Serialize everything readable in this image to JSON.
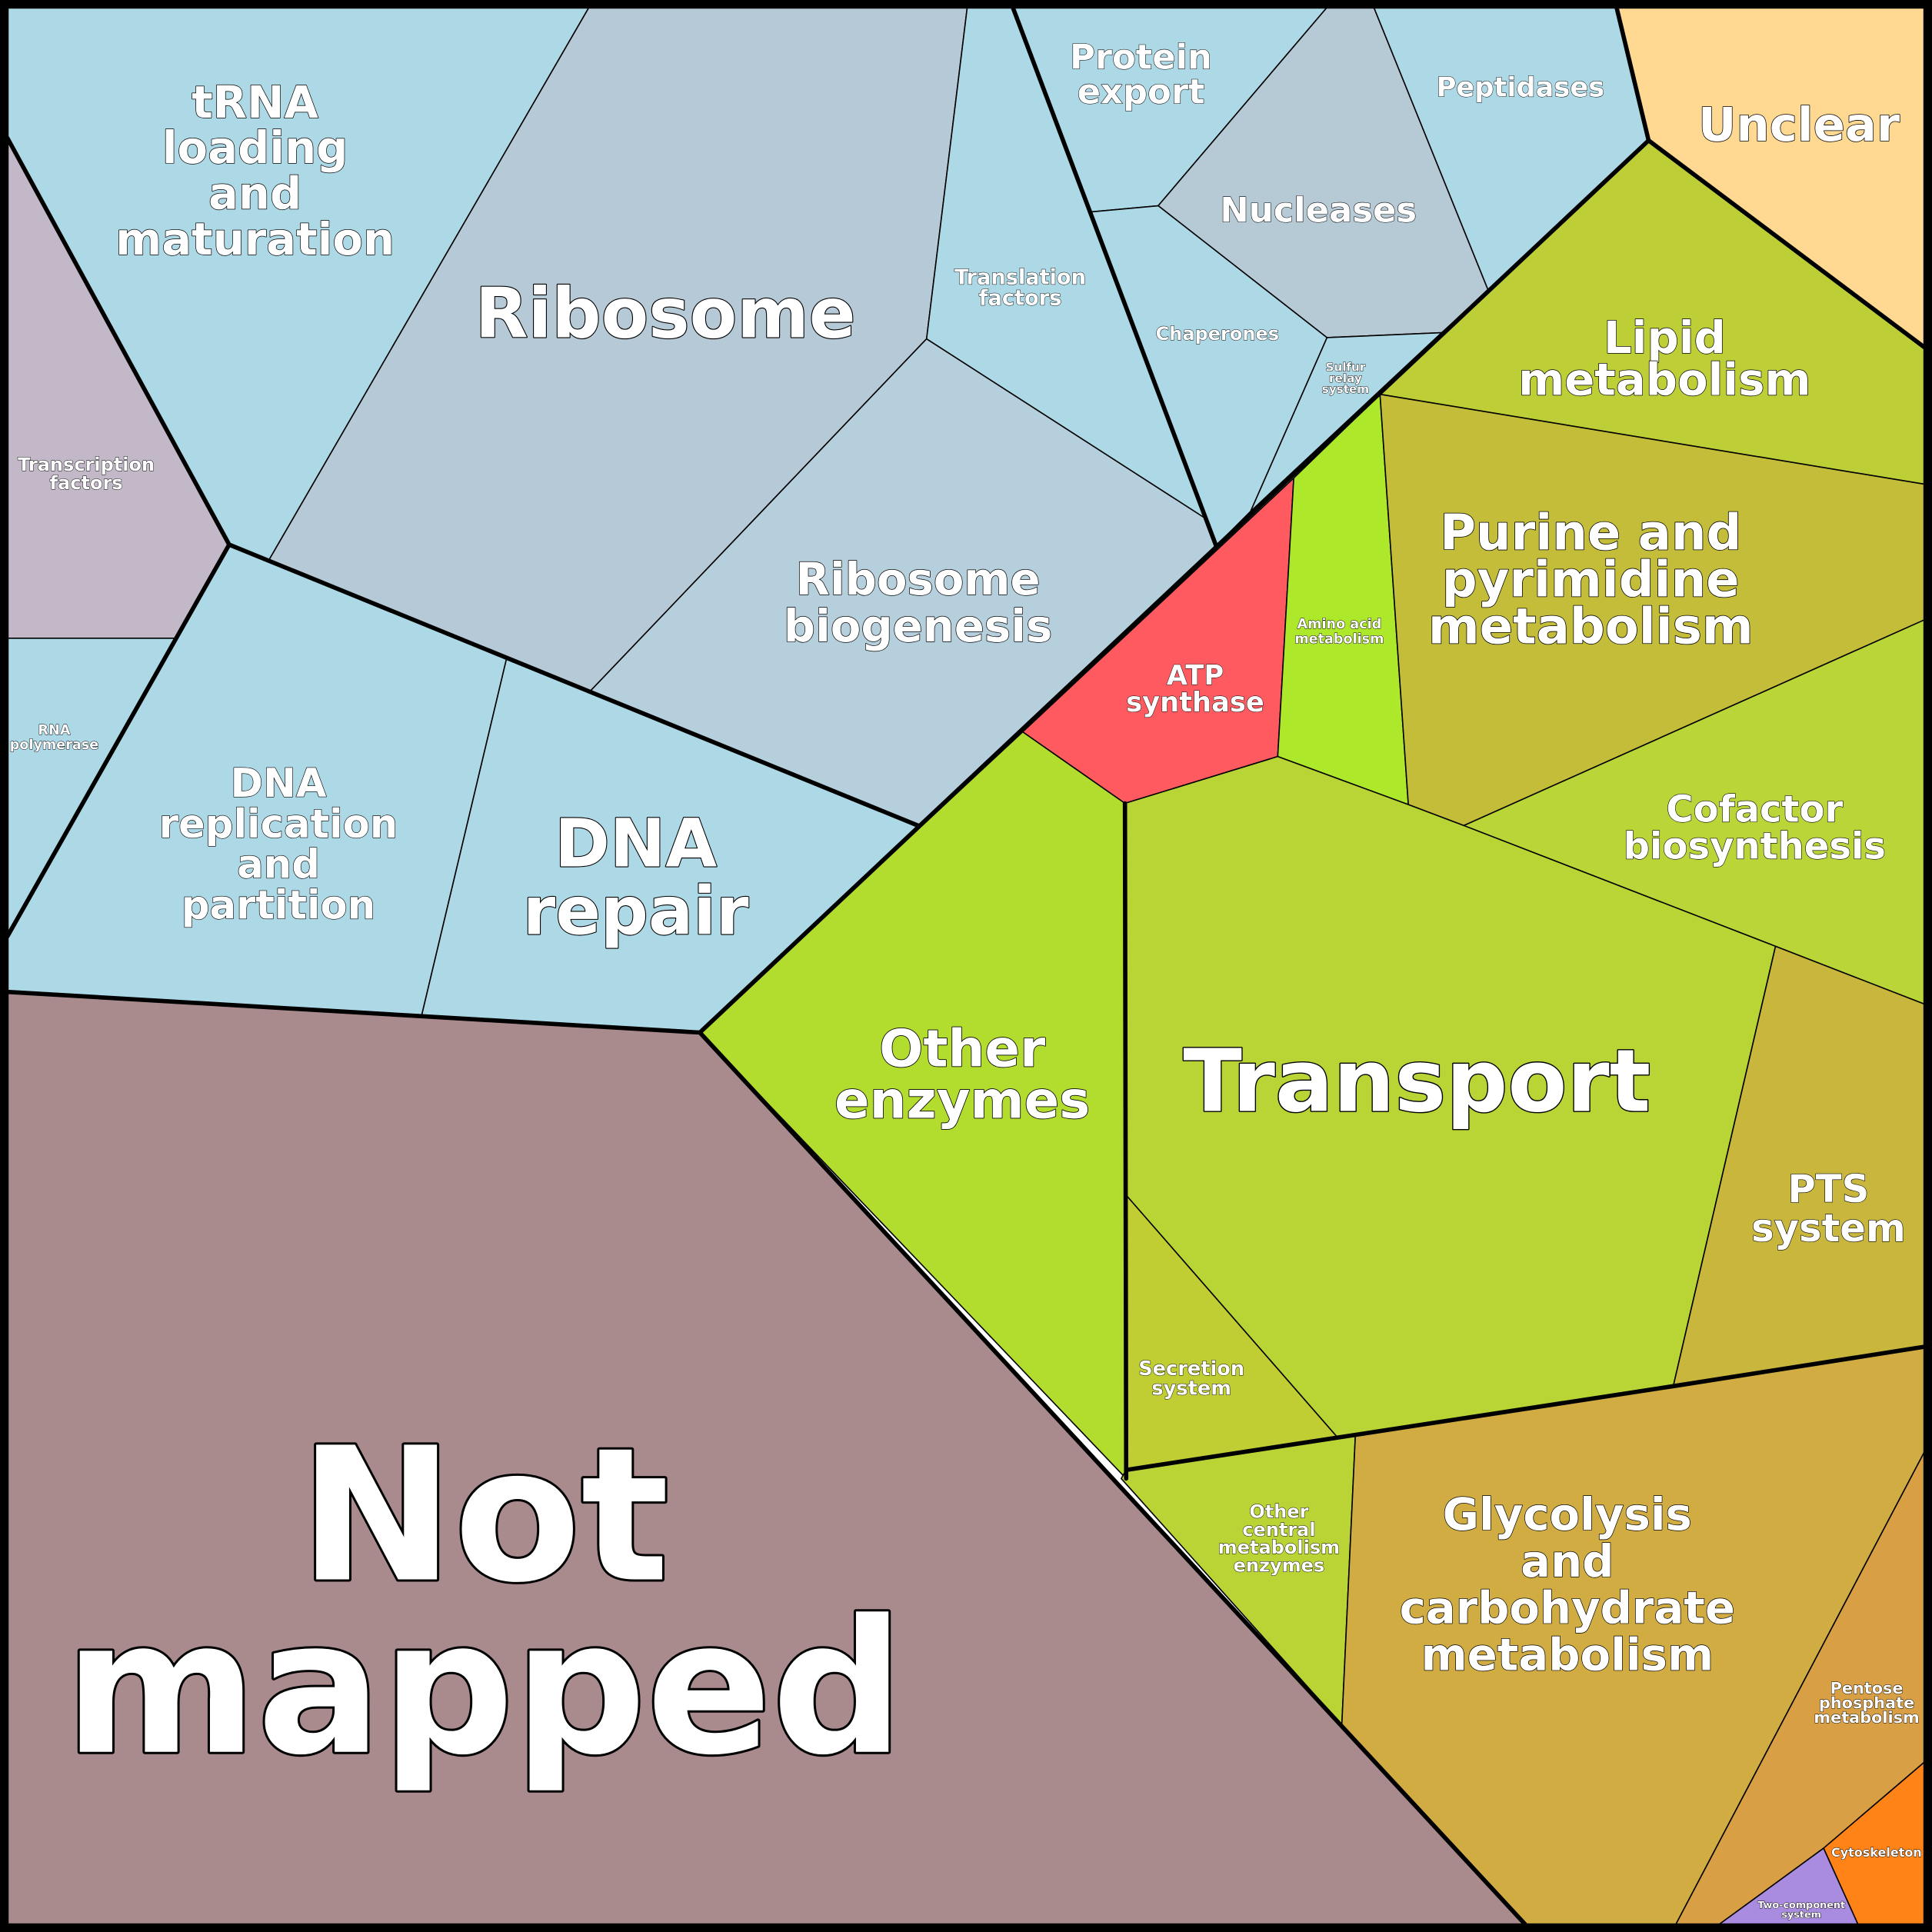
{
  "cells": [
    {
      "label": [
        "tRNA",
        "loading",
        "and",
        "maturation"
      ]
    },
    {
      "label": [
        "Ribosome"
      ]
    },
    {
      "label": [
        "Transcription",
        "factors"
      ]
    },
    {
      "label": [
        "RNA",
        "polymerase"
      ]
    },
    {
      "label": [
        "DNA",
        "replication",
        "and",
        "partition"
      ]
    },
    {
      "label": [
        "DNA",
        "repair"
      ]
    },
    {
      "label": [
        "Ribosome",
        "biogenesis"
      ]
    },
    {
      "label": [
        "Translation",
        "factors"
      ]
    },
    {
      "label": [
        "Protein",
        "export"
      ]
    },
    {
      "label": [
        "Nucleases"
      ]
    },
    {
      "label": [
        "Peptidases"
      ]
    },
    {
      "label": [
        "Chaperones"
      ]
    },
    {
      "label": [
        "Sulfur",
        "relay",
        "system"
      ]
    },
    {
      "label": [
        "Unclear"
      ]
    },
    {
      "label": [
        "Lipid",
        "metabolism"
      ]
    },
    {
      "label": [
        "ATP",
        "synthase"
      ]
    },
    {
      "label": [
        "Amino acid",
        "metabolism"
      ]
    },
    {
      "label": [
        "Purine and",
        "pyrimidine",
        "metabolism"
      ]
    },
    {
      "label": [
        "Cofactor",
        "biosynthesis"
      ]
    },
    {
      "label": [
        "Other",
        "enzymes"
      ]
    },
    {
      "label": [
        "Transport"
      ]
    },
    {
      "label": [
        "PTS",
        "system"
      ]
    },
    {
      "label": [
        "Secretion",
        "system"
      ]
    },
    {
      "label": [
        "Other",
        "central",
        "metabolism",
        "enzymes"
      ]
    },
    {
      "label": [
        "Glycolysis",
        "and",
        "carbohydrate",
        "metabolism"
      ]
    },
    {
      "label": [
        "Pentose",
        "phosphate",
        "metabolism"
      ]
    },
    {
      "label": [
        "Cytoskeleton"
      ]
    },
    {
      "label": [
        "Two-component",
        "system"
      ]
    },
    {
      "label": [
        "Not",
        "mapped"
      ]
    }
  ]
}
